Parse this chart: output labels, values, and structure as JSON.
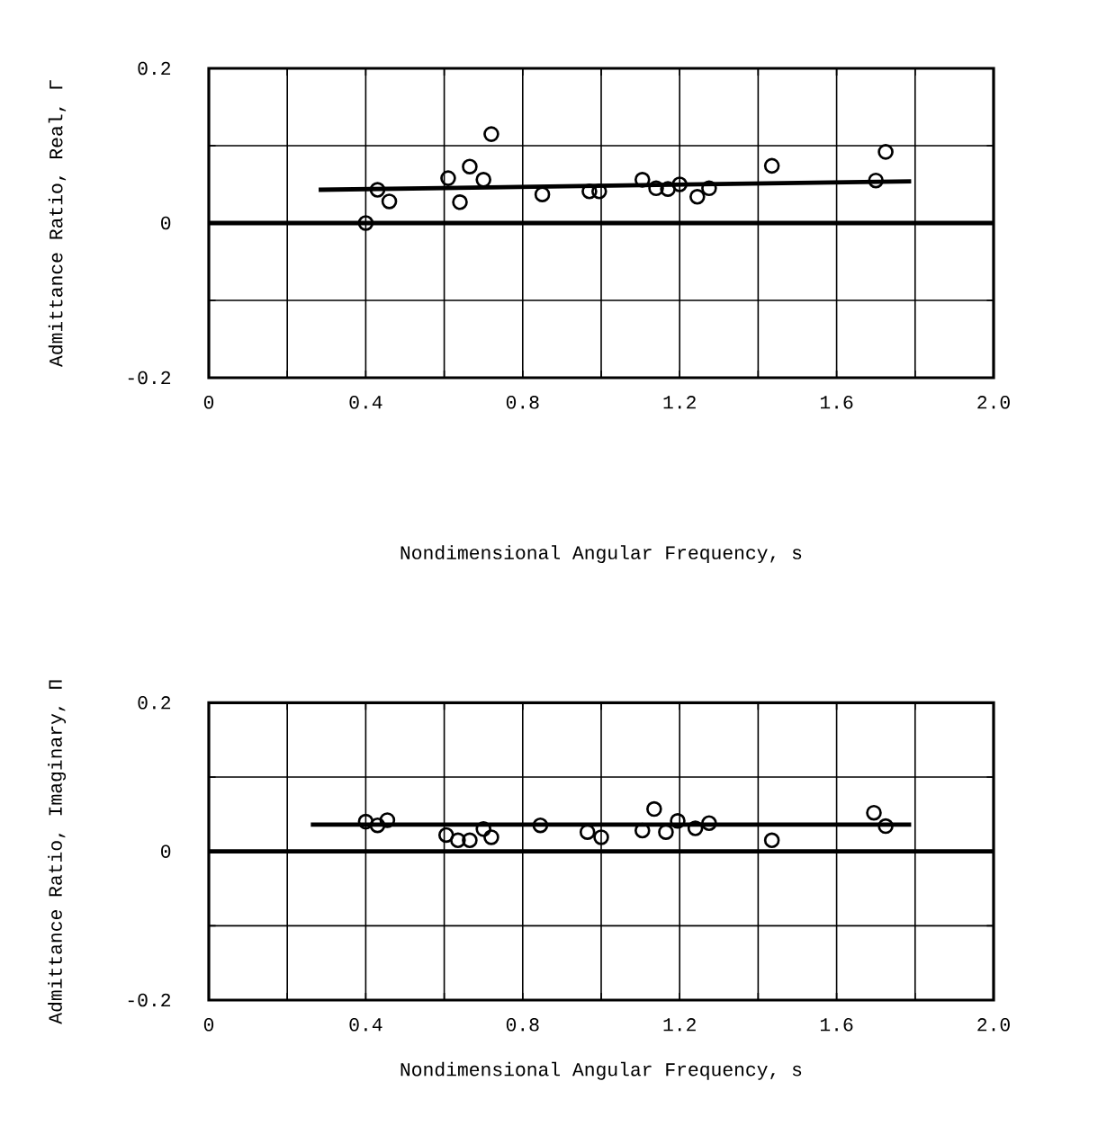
{
  "chart_data": [
    {
      "type": "scatter",
      "xlabel": "Nondimensional Angular Frequency, s",
      "ylabel": "Admittance Ratio, Real, Γ",
      "xlim": [
        0,
        2.0
      ],
      "ylim": [
        -0.2,
        0.2
      ],
      "xticks": [
        0,
        {
          "value": 0.2,
          "label": null
        },
        0.4,
        {
          "value": 0.6,
          "label": null
        },
        0.8,
        {
          "value": 1.0,
          "label": null
        },
        1.2,
        {
          "value": 1.4,
          "label": null
        },
        1.6,
        {
          "value": 1.8,
          "label": null
        },
        {
          "value": 2.0,
          "label": "2.0"
        }
      ],
      "yticks": [
        -0.2,
        0,
        0.2
      ],
      "grid": true,
      "marker": "circle",
      "ref_lines": [
        {
          "axis": "y",
          "value": 0,
          "color": "#000000"
        }
      ],
      "series": [
        {
          "color": "#000000",
          "x": [
            0.4,
            0.43,
            0.46,
            0.61,
            0.64,
            0.665,
            0.7,
            0.72,
            0.85,
            0.97,
            0.995,
            1.105,
            1.14,
            1.17,
            1.2,
            1.245,
            1.275,
            1.435,
            1.7,
            1.725
          ],
          "values": [
            0.0,
            0.043,
            0.028,
            0.058,
            0.027,
            0.073,
            0.056,
            0.115,
            0.037,
            0.041,
            0.041,
            0.056,
            0.045,
            0.044,
            0.05,
            0.034,
            0.045,
            0.074,
            0.055,
            0.092
          ]
        },
        {
          "type": "line",
          "marker": "none",
          "color": "#000000",
          "x": [
            0.28,
            1.79
          ],
          "values": [
            0.043,
            0.054
          ]
        }
      ]
    },
    {
      "type": "scatter",
      "xlabel": "Nondimensional Angular Frequency, s",
      "ylabel": "Admittance Ratio, Imaginary, Π",
      "xlim": [
        0,
        2.0
      ],
      "ylim": [
        -0.2,
        0.2
      ],
      "xticks": [
        0,
        {
          "value": 0.2,
          "label": null
        },
        0.4,
        {
          "value": 0.6,
          "label": null
        },
        0.8,
        {
          "value": 1.0,
          "label": null
        },
        1.2,
        {
          "value": 1.4,
          "label": null
        },
        1.6,
        {
          "value": 1.8,
          "label": null
        },
        {
          "value": 2.0,
          "label": "2.0"
        }
      ],
      "yticks": [
        -0.2,
        0,
        0.2
      ],
      "grid": true,
      "marker": "circle",
      "ref_lines": [
        {
          "axis": "y",
          "value": 0,
          "color": "#000000"
        }
      ],
      "series": [
        {
          "color": "#000000",
          "x": [
            0.4,
            0.43,
            0.455,
            0.605,
            0.635,
            0.665,
            0.7,
            0.72,
            0.845,
            0.965,
            1.0,
            1.105,
            1.135,
            1.165,
            1.195,
            1.24,
            1.275,
            1.435,
            1.695,
            1.725
          ],
          "values": [
            0.04,
            0.035,
            0.042,
            0.022,
            0.015,
            0.015,
            0.03,
            0.019,
            0.035,
            0.026,
            0.019,
            0.028,
            0.057,
            0.026,
            0.041,
            0.031,
            0.038,
            0.015,
            0.052,
            0.034
          ]
        },
        {
          "type": "line",
          "marker": "none",
          "color": "#000000",
          "x": [
            0.26,
            1.79
          ],
          "values": [
            0.036,
            0.036
          ]
        }
      ]
    }
  ]
}
